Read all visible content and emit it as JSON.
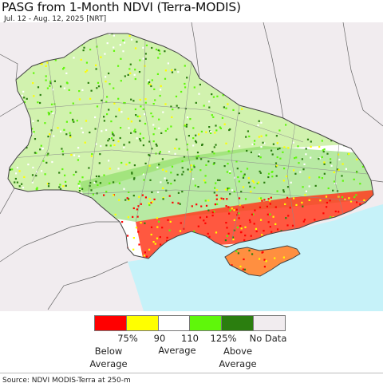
{
  "title": "PASG from 1-Month NDVI (Terra-MODIS)",
  "subtitle": "Jul. 12 - Aug. 12, 2025 [NRT]",
  "colors": {
    "background_land_outside": "#f1ecef",
    "sea": "#c6f2f9",
    "border_line": "#555555",
    "internal_border": "#8a8a8a",
    "very_low": "#ff0000",
    "low": "#ffff00",
    "average": "#ffffff",
    "high": "#5ff70a",
    "very_high": "#2b7e0f",
    "no_data": "#f1ecef"
  },
  "legend": {
    "swatches": [
      {
        "name": "below-average-swatch",
        "color": "#ff0000"
      },
      {
        "name": "low-swatch",
        "color": "#ffff00"
      },
      {
        "name": "average-swatch",
        "color": "#ffffff"
      },
      {
        "name": "high-swatch",
        "color": "#5ff70a"
      },
      {
        "name": "above-average-swatch",
        "color": "#2b7e0f"
      },
      {
        "name": "no-data-swatch",
        "color": "#f1ecef"
      }
    ],
    "tick_labels": [
      "75%",
      "90",
      "110",
      "125%",
      "No Data"
    ],
    "below_label": "Below\nAverage",
    "average_label": "Average",
    "above_label": "Above\nAverage"
  },
  "source": "Source: NDVI MODIS-Terra at 250-m"
}
